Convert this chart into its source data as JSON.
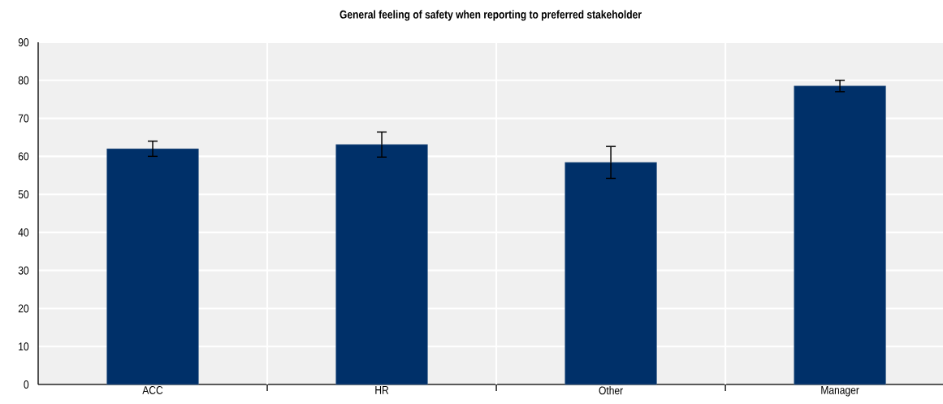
{
  "chart_data": {
    "type": "bar",
    "title": "General feeling of safety when reporting to preferred stakeholder",
    "categories": [
      "ACC",
      "HR",
      "Other",
      "Manager"
    ],
    "values": [
      62.0,
      63.1,
      58.4,
      78.5
    ],
    "errors": [
      2.0,
      3.3,
      4.2,
      1.5
    ],
    "color": "#003069",
    "ylim": [
      0,
      90
    ],
    "yticks": [
      0,
      10,
      20,
      30,
      40,
      50,
      60,
      70,
      80,
      90
    ],
    "grid": true
  }
}
